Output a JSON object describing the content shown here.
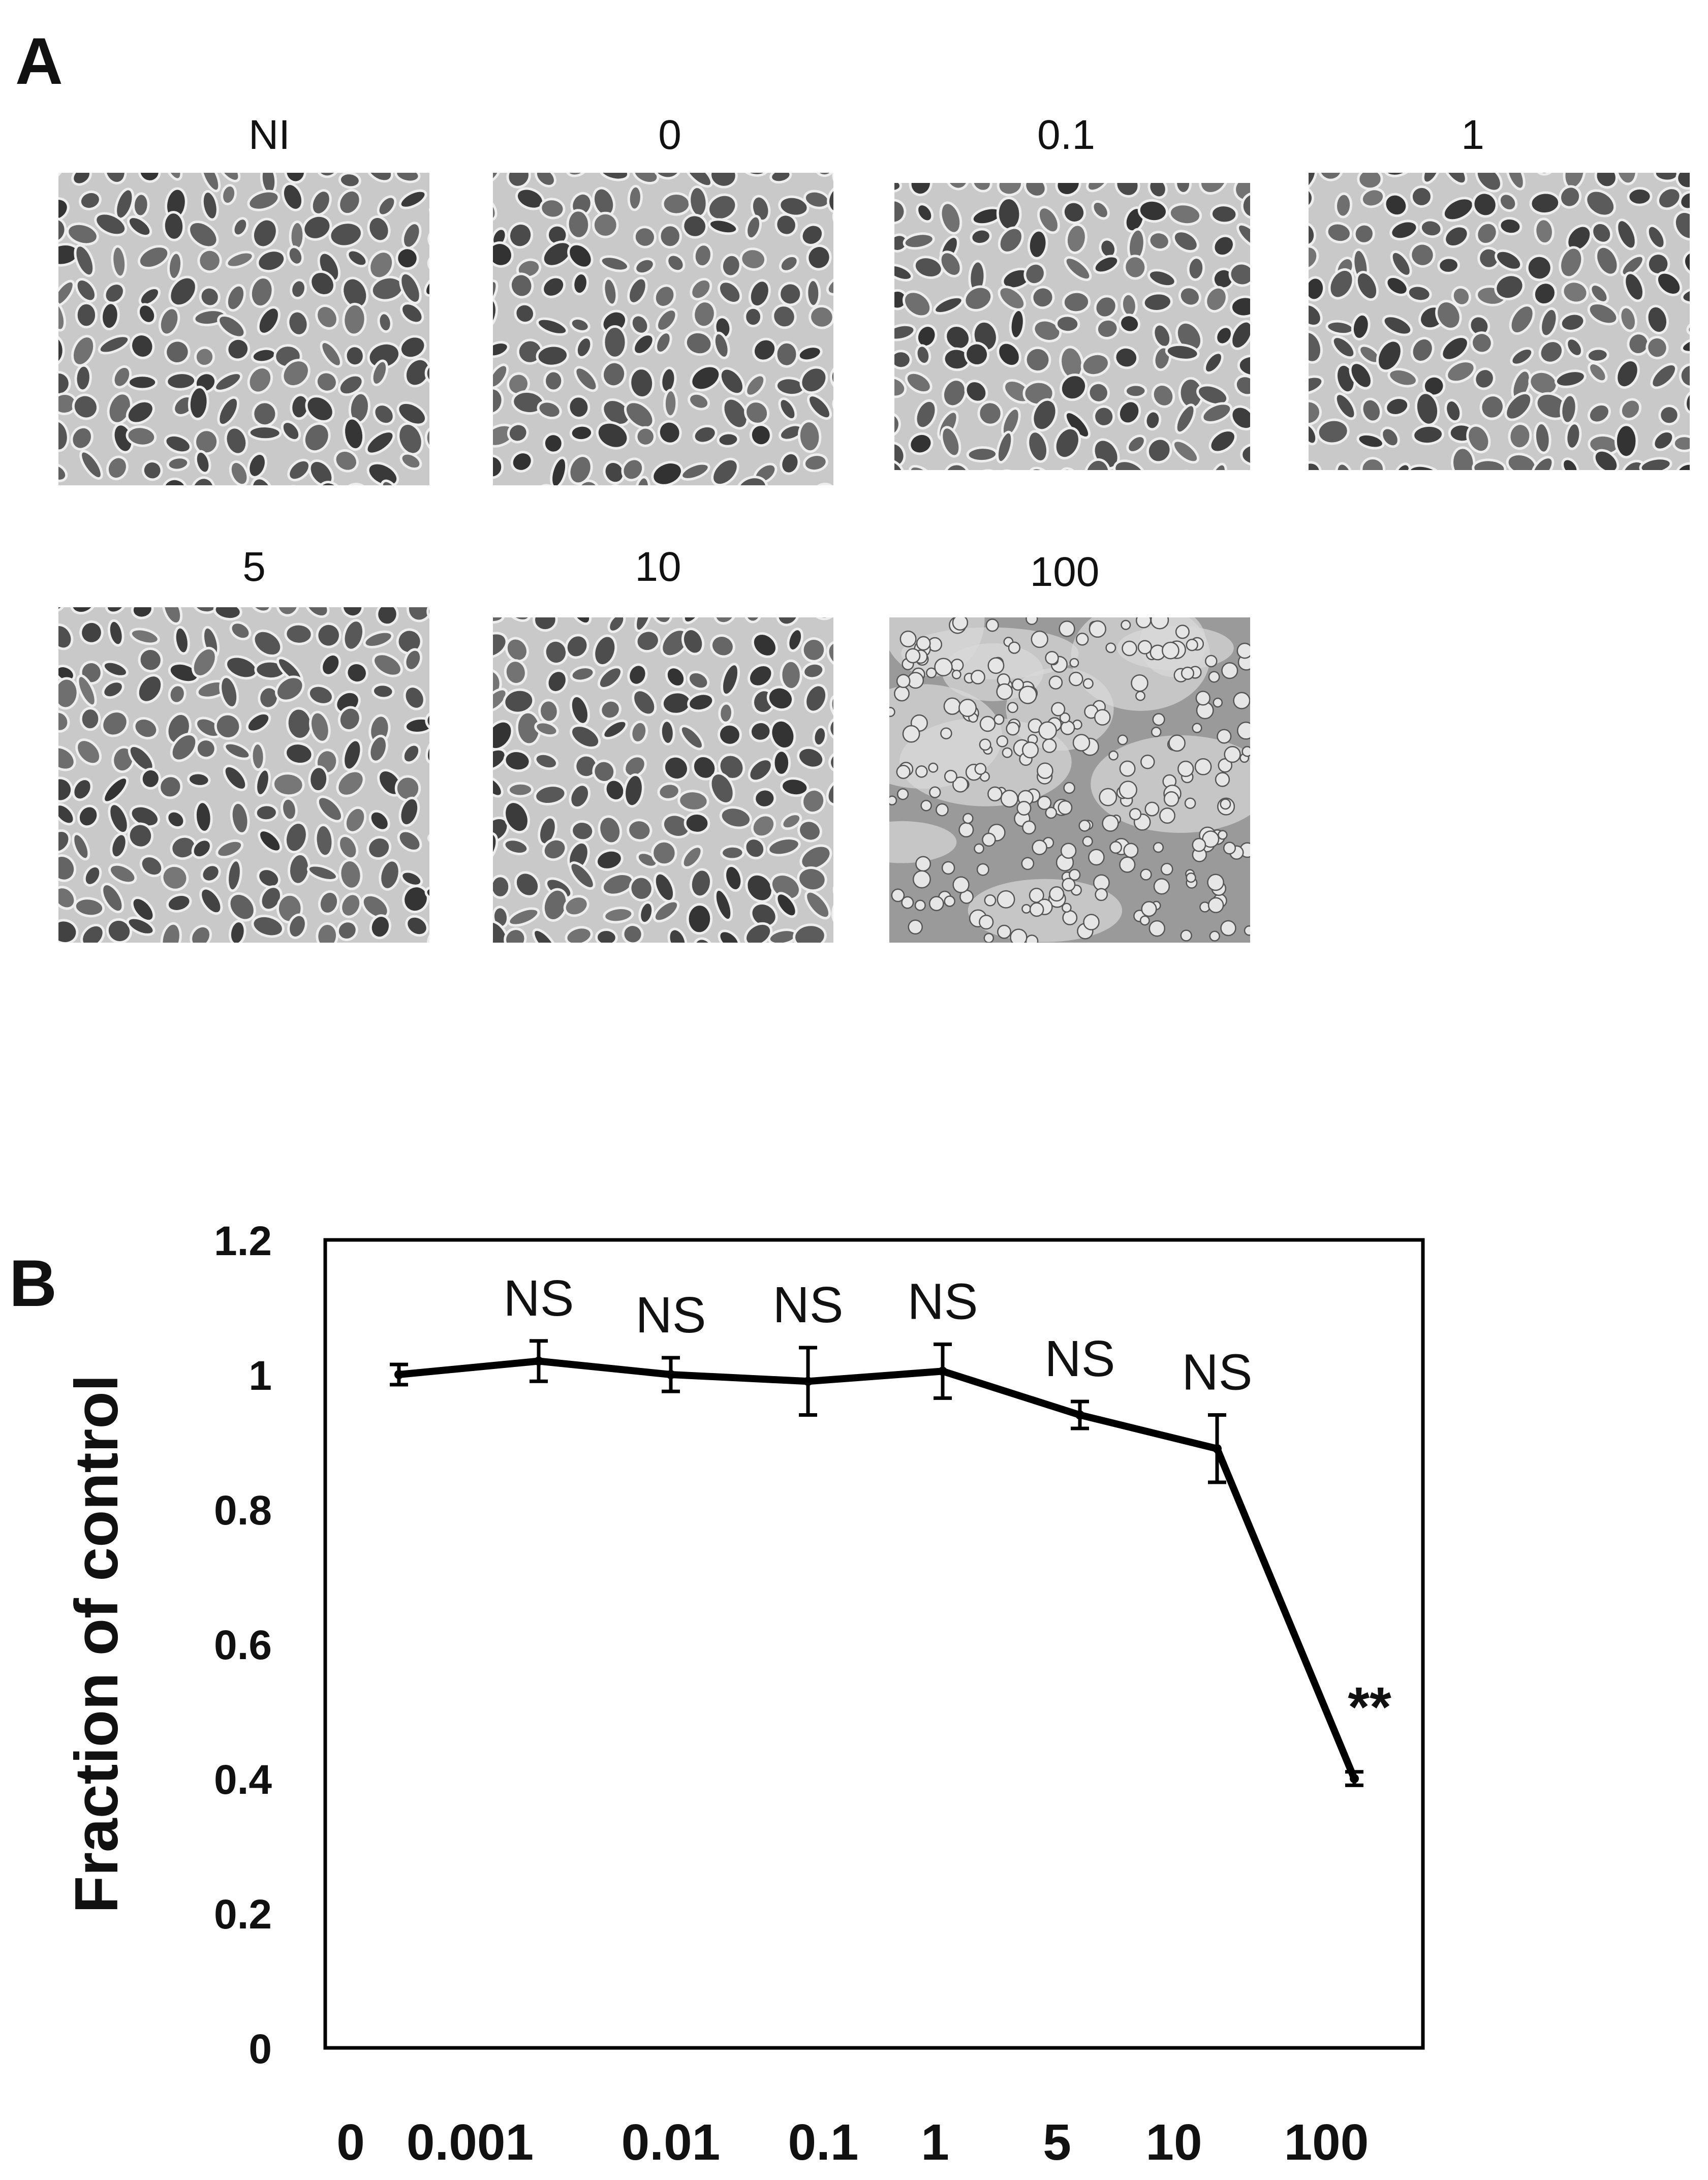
{
  "panel_a": {
    "letter": "A",
    "images": [
      {
        "label": "NI",
        "density": "confluent"
      },
      {
        "label": "0",
        "density": "confluent"
      },
      {
        "label": "0.1",
        "density": "confluent"
      },
      {
        "label": "1",
        "density": "confluent"
      },
      {
        "label": "5",
        "density": "confluent"
      },
      {
        "label": "10",
        "density": "confluent"
      },
      {
        "label": "100",
        "density": "sparse-rounded"
      }
    ]
  },
  "panel_b": {
    "letter": "B"
  },
  "chart_data": {
    "type": "line",
    "title": "",
    "xlabel": "",
    "ylabel": "Fraction of control",
    "categories": [
      "0",
      "0.001",
      "0.01",
      "0.1",
      "1",
      "5",
      "10",
      "100"
    ],
    "ylim": [
      0,
      1.2
    ],
    "yticks": [
      "0",
      "0.2",
      "0.4",
      "0.6",
      "0.8",
      "1",
      "1.2"
    ],
    "grid": false,
    "series": [
      {
        "values": [
          1.0,
          1.02,
          1.0,
          0.99,
          1.005,
          0.94,
          0.89,
          0.4
        ],
        "errors": [
          0.015,
          0.03,
          0.025,
          0.05,
          0.04,
          0.02,
          0.05,
          0.01
        ]
      }
    ],
    "annotations": [
      "",
      "NS",
      "NS",
      "NS",
      "NS",
      "NS",
      "NS",
      "**"
    ],
    "line_color": "#000000"
  }
}
